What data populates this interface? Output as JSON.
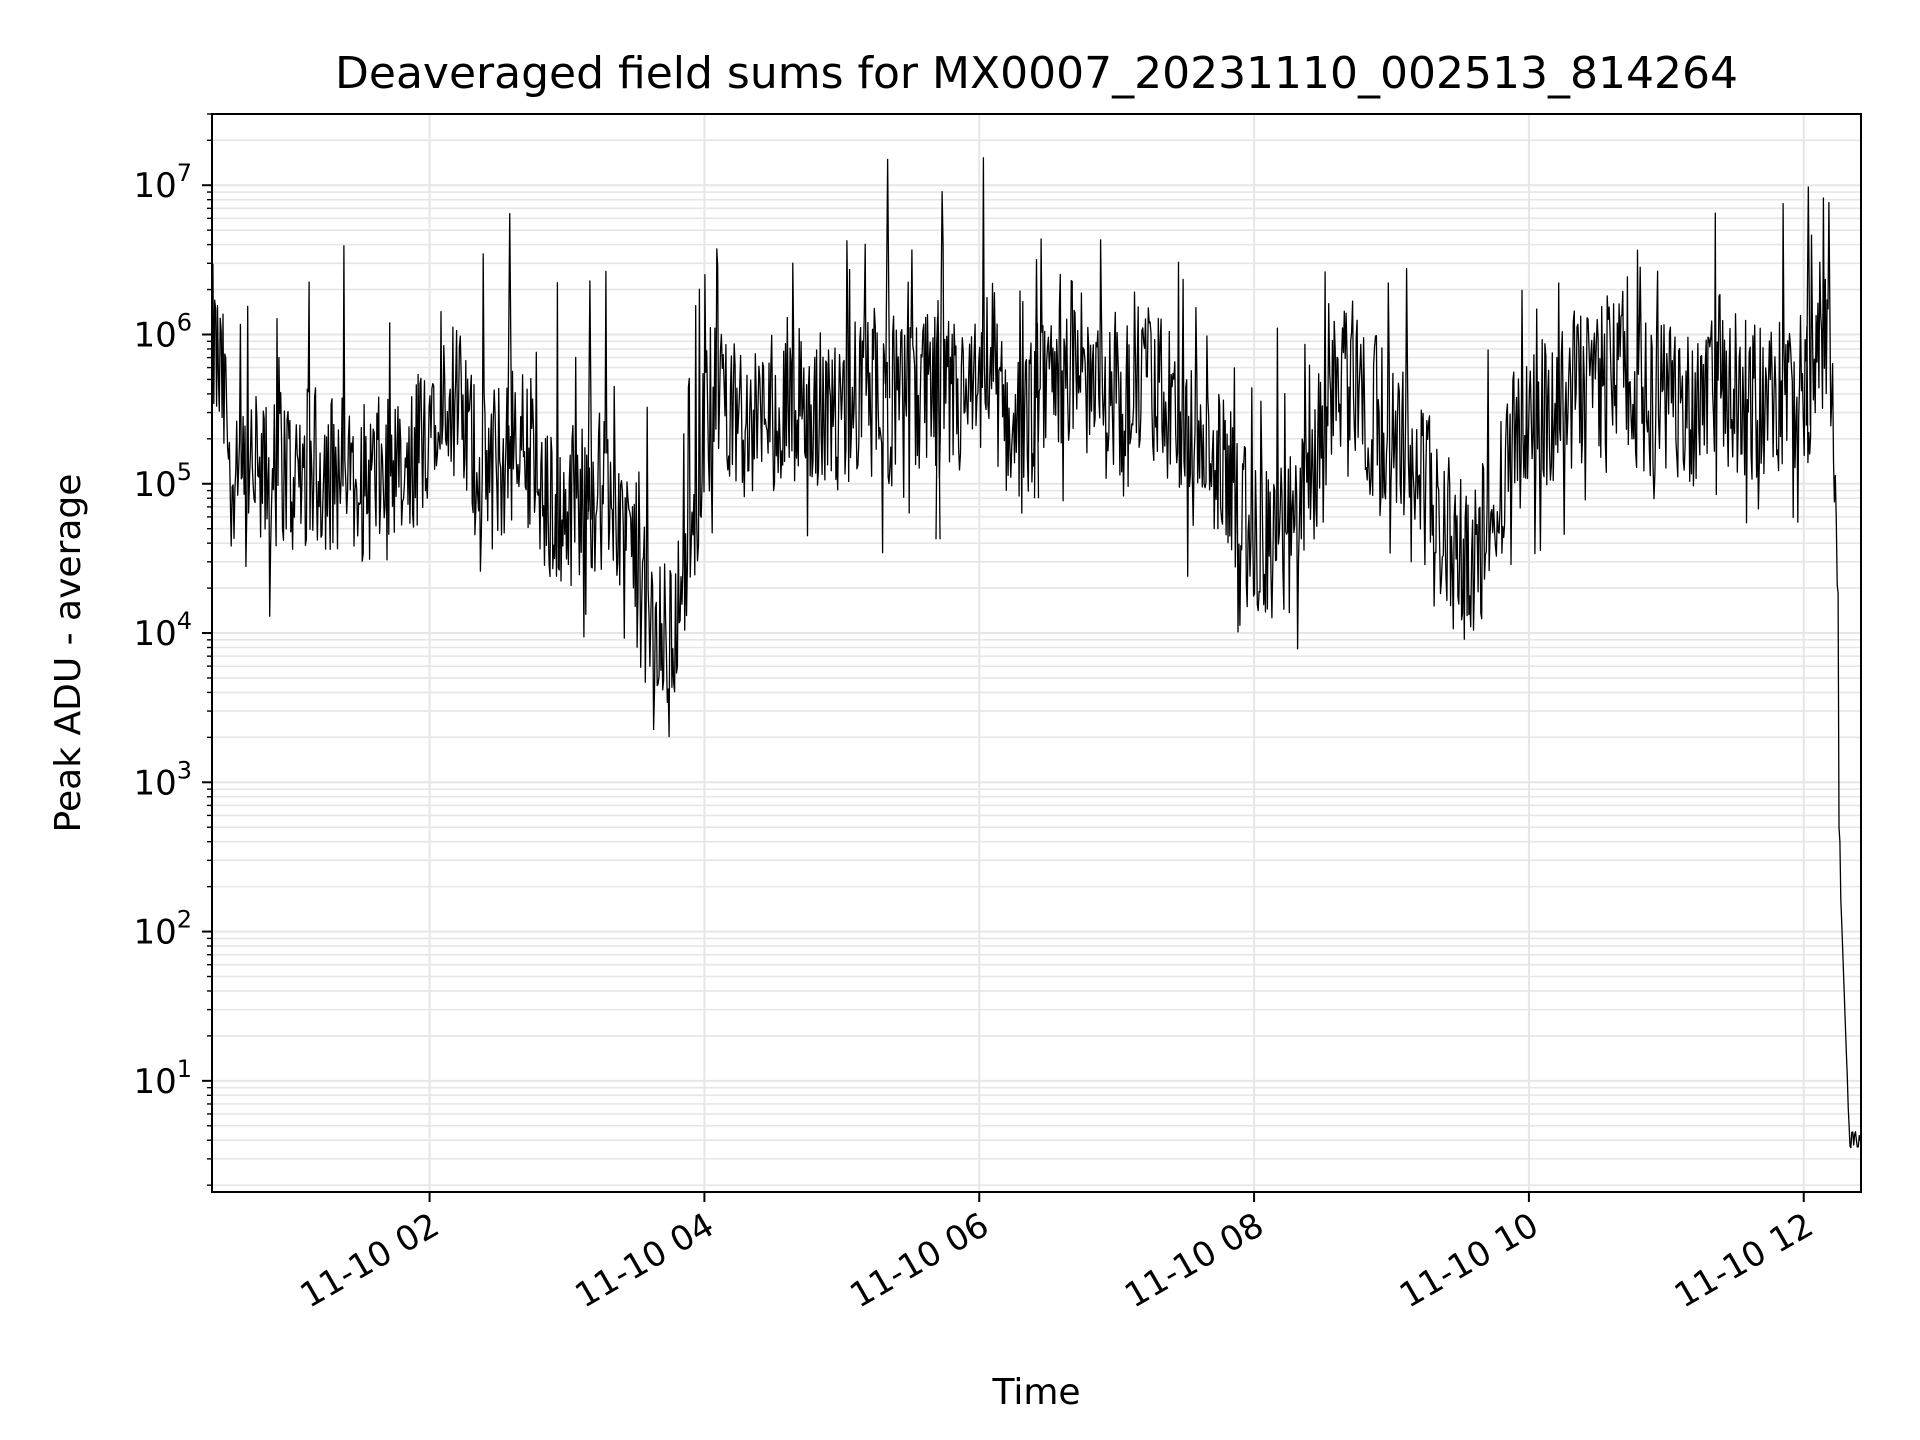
{
  "chart_data": {
    "type": "line",
    "title": "Deaveraged field sums for MX0007_20231110_002513_814264",
    "xlabel": "Time",
    "ylabel": "Peak ADU - average",
    "yscale": "log",
    "ylim": [
      1.8,
      30000000
    ],
    "xlim": [
      "11-10 00:25",
      "11-10 12:25"
    ],
    "x_ticks": [
      "11-10 02",
      "11-10 04",
      "11-10 06",
      "11-10 08",
      "11-10 10",
      "11-10 12"
    ],
    "y_ticks": [
      {
        "base": "10",
        "exp": "1",
        "value": 10
      },
      {
        "base": "10",
        "exp": "2",
        "value": 100
      },
      {
        "base": "10",
        "exp": "3",
        "value": 1000
      },
      {
        "base": "10",
        "exp": "4",
        "value": 10000
      },
      {
        "base": "10",
        "exp": "5",
        "value": 100000
      },
      {
        "base": "10",
        "exp": "6",
        "value": 1000000
      },
      {
        "base": "10",
        "exp": "7",
        "value": 10000000
      }
    ],
    "grid": true,
    "line_color": "#000000",
    "grid_color": "#e6e6e6",
    "series": [
      {
        "x": [
          "00:25",
          "00:30",
          "00:35",
          "00:40",
          "00:45",
          "00:50",
          "00:55",
          "01:00",
          "01:10",
          "01:20",
          "01:30",
          "01:40",
          "01:50",
          "02:00",
          "02:05",
          "02:10",
          "02:15",
          "02:20",
          "02:30",
          "02:40",
          "02:45",
          "02:50",
          "02:55",
          "03:00",
          "03:10",
          "03:20",
          "03:30",
          "03:35",
          "03:40",
          "03:45",
          "03:50",
          "03:55",
          "04:00",
          "04:05",
          "04:10",
          "04:20",
          "04:30",
          "04:40",
          "04:50",
          "05:00",
          "05:10",
          "05:20",
          "05:30",
          "05:40",
          "05:50",
          "06:00",
          "06:05",
          "06:10",
          "06:20",
          "06:30",
          "06:40",
          "06:50",
          "07:00",
          "07:10",
          "07:20",
          "07:30",
          "07:40",
          "07:50",
          "08:00",
          "08:10",
          "08:20",
          "08:30",
          "08:40",
          "08:50",
          "09:00",
          "09:10",
          "09:20",
          "09:30",
          "09:40",
          "09:50",
          "10:00",
          "10:10",
          "10:20",
          "10:30",
          "10:40",
          "10:50",
          "11:00",
          "11:10",
          "11:20",
          "11:30",
          "11:40",
          "11:50",
          "12:00",
          "12:05",
          "12:10",
          "12:12",
          "12:14",
          "12:16",
          "12:20",
          "12:25"
        ],
        "y": [
          900000,
          400000,
          80000,
          100000,
          120000,
          90000,
          150000,
          110000,
          130000,
          120000,
          100000,
          110000,
          90000,
          300000,
          600000,
          400000,
          250000,
          150000,
          130000,
          200000,
          150000,
          60000,
          80000,
          70000,
          90000,
          85000,
          30000,
          12000,
          8000,
          9000,
          20000,
          50000,
          300000,
          500000,
          400000,
          250000,
          300000,
          350000,
          300000,
          350000,
          400000,
          300000,
          350000,
          400000,
          350000,
          350000,
          800000,
          300000,
          200000,
          600000,
          700000,
          400000,
          350000,
          500000,
          400000,
          200000,
          150000,
          100000,
          35000,
          40000,
          50000,
          250000,
          700000,
          300000,
          250000,
          150000,
          60000,
          30000,
          40000,
          150000,
          250000,
          300000,
          350000,
          500000,
          700000,
          350000,
          400000,
          300000,
          600000,
          400000,
          350000,
          400000,
          350000,
          700000,
          1200000,
          600000,
          150000,
          200,
          4,
          4
        ]
      }
    ],
    "spikes": [
      {
        "x": "02:35",
        "y": 6500000
      },
      {
        "x": "03:10",
        "y": 2300000
      },
      {
        "x": "05:20",
        "y": 15000000
      },
      {
        "x": "05:42",
        "y": 1700000
      },
      {
        "x": "06:25",
        "y": 3200000
      },
      {
        "x": "12:02",
        "y": 9800000
      }
    ]
  }
}
